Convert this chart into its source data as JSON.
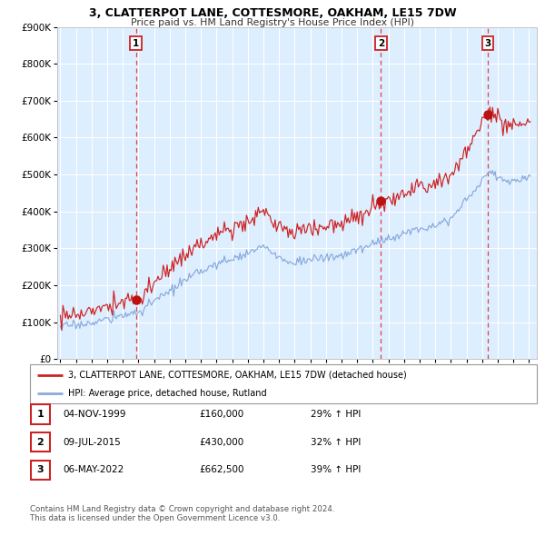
{
  "title": "3, CLATTERPOT LANE, COTTESMORE, OAKHAM, LE15 7DW",
  "subtitle": "Price paid vs. HM Land Registry's House Price Index (HPI)",
  "plot_bg_color": "#ddeeff",
  "sale1_date": 1999.84,
  "sale1_price": 160000,
  "sale2_date": 2015.52,
  "sale2_price": 430000,
  "sale3_date": 2022.35,
  "sale3_price": 662500,
  "ylim": [
    0,
    900000
  ],
  "xlim_start": 1994.8,
  "xlim_end": 2025.5,
  "grid_color": "#ffffff",
  "line_color_property": "#cc2222",
  "line_color_hpi": "#88aadd",
  "legend_label_property": "3, CLATTERPOT LANE, COTTESMORE, OAKHAM, LE15 7DW (detached house)",
  "legend_label_hpi": "HPI: Average price, detached house, Rutland",
  "footer": "Contains HM Land Registry data © Crown copyright and database right 2024.\nThis data is licensed under the Open Government Licence v3.0.",
  "table_rows": [
    {
      "num": "1",
      "date": "04-NOV-1999",
      "price": "£160,000",
      "hpi": "29% ↑ HPI"
    },
    {
      "num": "2",
      "date": "09-JUL-2015",
      "price": "£430,000",
      "hpi": "32% ↑ HPI"
    },
    {
      "num": "3",
      "date": "06-MAY-2022",
      "price": "£662,500",
      "hpi": "39% ↑ HPI"
    }
  ]
}
